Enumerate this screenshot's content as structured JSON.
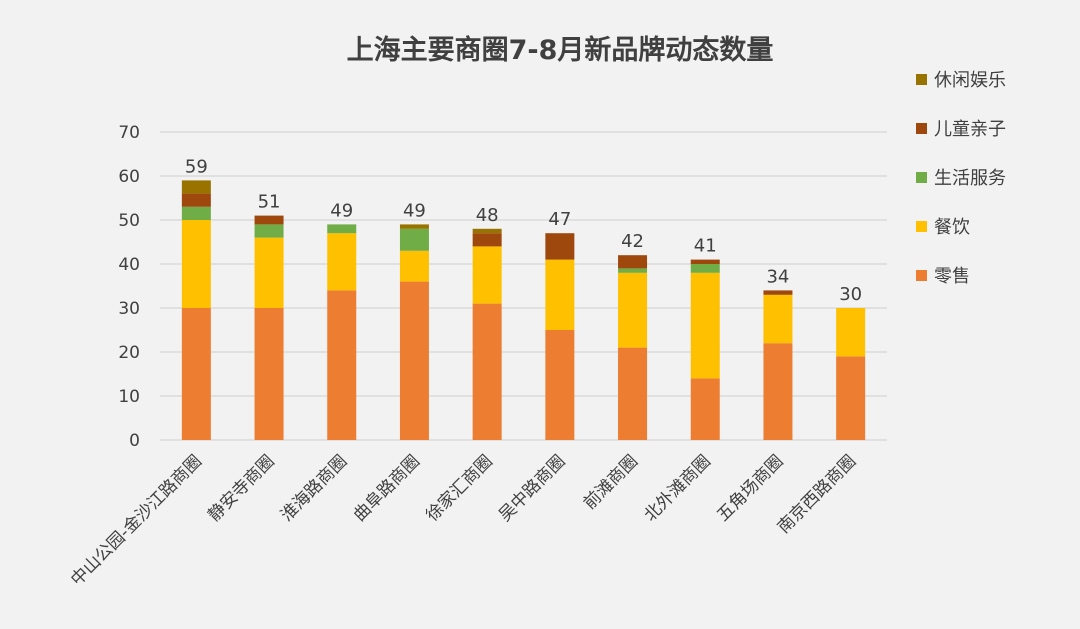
{
  "chart_data": {
    "type": "bar",
    "stacked": true,
    "title": "上海主要商圈7-8月新品牌动态数量",
    "categories": [
      "中山公园-金沙江路商圈",
      "静安寺商圈",
      "淮海路商圈",
      "曲阜路商圈",
      "徐家汇商圈",
      "吴中路商圈",
      "前滩商圈",
      "北外滩商圈",
      "五角场商圈",
      "南京西路商圈"
    ],
    "series": [
      {
        "name": "零售",
        "color": "#ed7d31",
        "values": [
          30,
          30,
          34,
          36,
          31,
          25,
          21,
          14,
          22,
          19
        ]
      },
      {
        "name": "餐饮",
        "color": "#ffc000",
        "values": [
          20,
          16,
          13,
          7,
          13,
          16,
          17,
          24,
          11,
          11
        ]
      },
      {
        "name": "生活服务",
        "color": "#70ad47",
        "values": [
          3,
          3,
          2,
          5,
          0,
          0,
          1,
          2,
          0,
          0
        ]
      },
      {
        "name": "儿童亲子",
        "color": "#9e480e",
        "values": [
          3,
          2,
          0,
          0,
          3,
          6,
          3,
          1,
          1,
          0
        ]
      },
      {
        "name": "休闲娱乐",
        "color": "#997300",
        "values": [
          3,
          0,
          0,
          1,
          1,
          0,
          0,
          0,
          0,
          0
        ]
      }
    ],
    "totals": [
      59,
      51,
      49,
      49,
      48,
      47,
      42,
      41,
      34,
      30
    ],
    "ylim": [
      0,
      70
    ],
    "yticks": [
      0,
      10,
      20,
      30,
      40,
      50,
      60,
      70
    ],
    "grid": true,
    "legend": "right"
  }
}
